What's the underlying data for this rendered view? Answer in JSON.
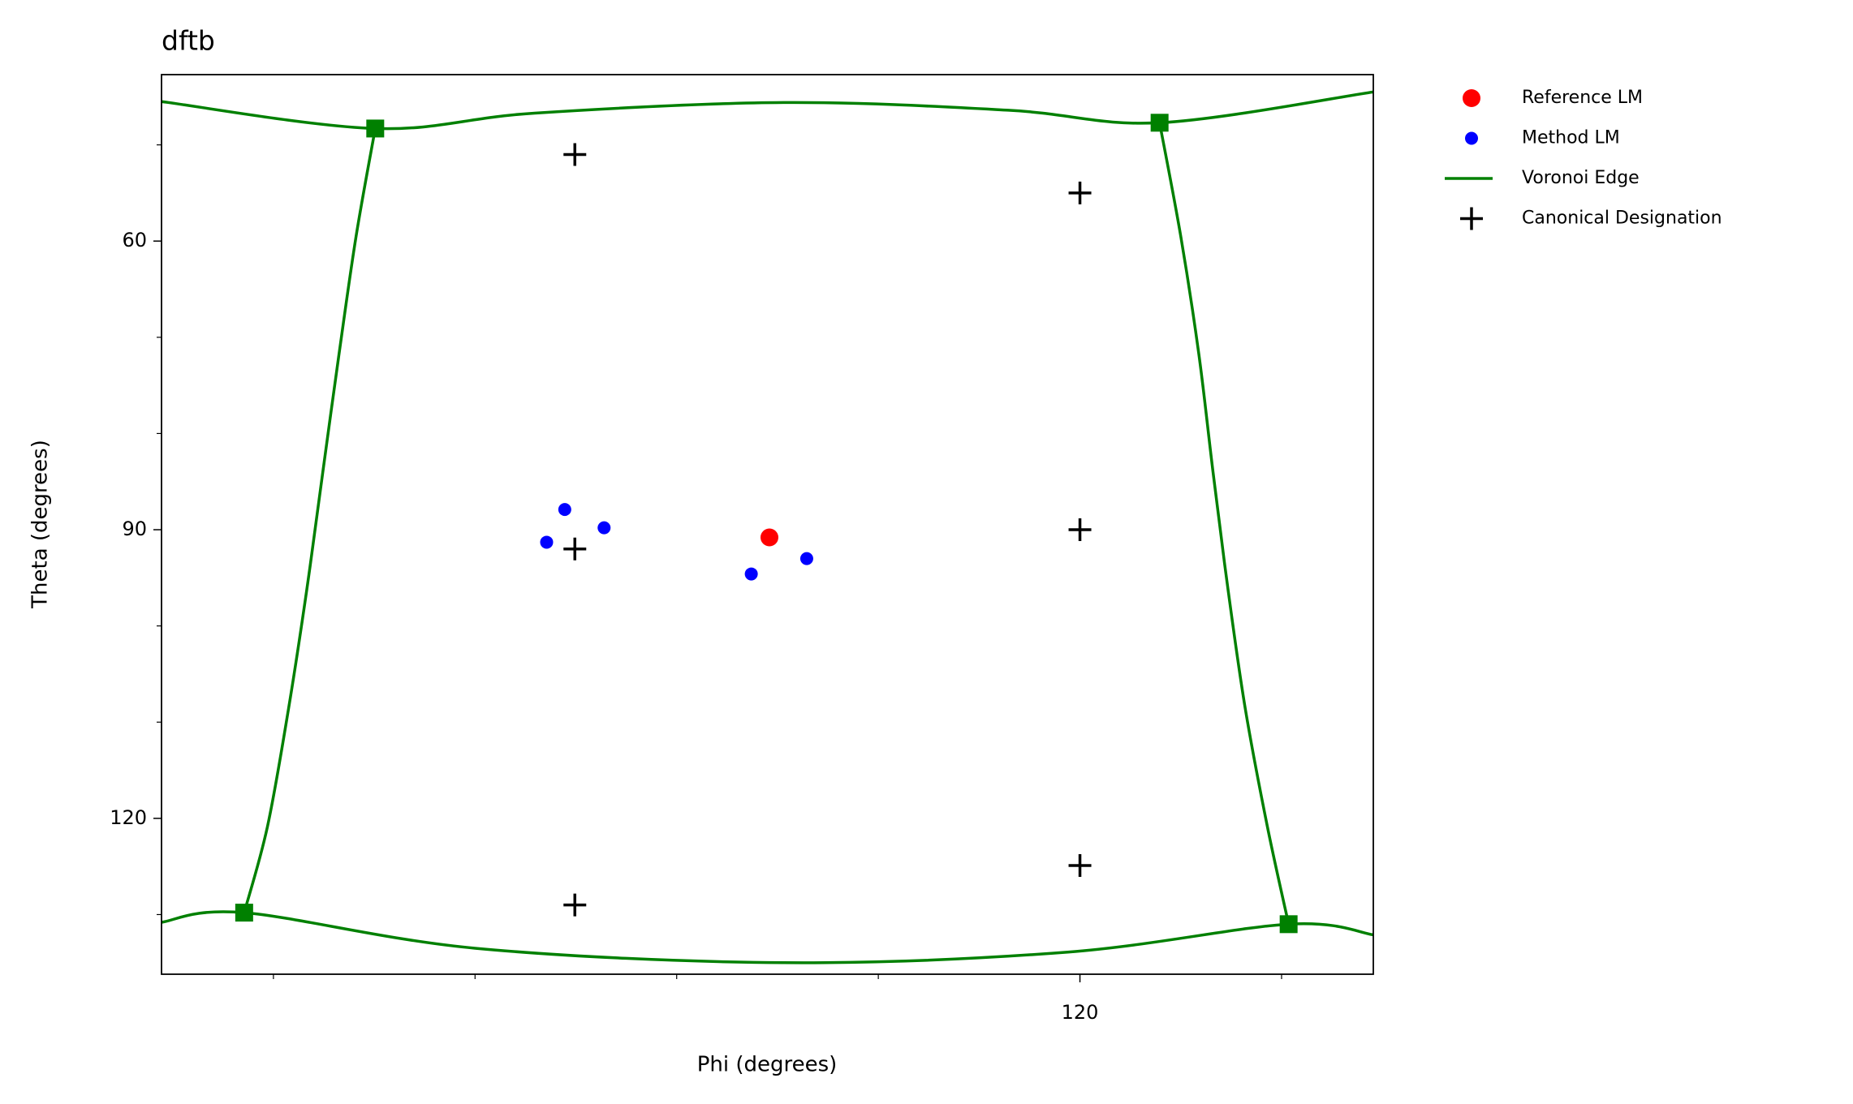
{
  "chart_data": {
    "type": "scatter",
    "title": "dftb",
    "x_label": "Phi (degrees)",
    "y_label": "Theta (degrees)",
    "xlim": [
      28.9,
      149.1
    ],
    "ylim": [
      136.2,
      42.7
    ],
    "y_inverted": true,
    "xticks": [
      120
    ],
    "xminorticks": [
      40,
      60,
      80,
      100,
      140
    ],
    "yticks": [
      60,
      90,
      120
    ],
    "yminorticks": [
      50,
      70,
      80,
      100,
      110,
      130
    ],
    "legend": "outside-upper-right",
    "series": [
      {
        "name": "Reference LM",
        "kind": "point",
        "color": "#ff0000",
        "x": [
          89.2
        ],
        "y": [
          90.8
        ]
      },
      {
        "name": "Method LM",
        "kind": "point-small",
        "color": "#0000ff",
        "x": [
          68.9,
          72.8,
          67.1,
          87.4,
          92.9
        ],
        "y": [
          87.9,
          89.8,
          91.3,
          94.6,
          93.0
        ]
      },
      {
        "name": "Voronoi Edge",
        "kind": "edges",
        "color": "#008000",
        "edges": [
          {
            "x": [
              28.9,
              50.1,
              65.9,
              90.6,
              112.9,
              127.9,
              149.1
            ],
            "y": [
              45.5,
              48.3,
              46.7,
              45.6,
              46.4,
              47.7,
              44.5
            ]
          },
          {
            "x": [
              28.9,
              37.1,
              60.0,
              90.6,
              118.8,
              140.7,
              149.1
            ],
            "y": [
              130.8,
              129.8,
              133.5,
              135.0,
              133.9,
              131.0,
              132.1
            ]
          },
          {
            "x": [
              50.1,
              48.2,
              46.5,
              44.9,
              43.3,
              41.5,
              39.4,
              37.1
            ],
            "y": [
              48.3,
              59.5,
              71.8,
              84.0,
              96.3,
              108.6,
              120.9,
              129.8
            ]
          },
          {
            "x": [
              127.9,
              130.0,
              131.8,
              133.2,
              134.7,
              136.4,
              138.6,
              140.7
            ],
            "y": [
              47.7,
              59.5,
              71.8,
              84.0,
              96.3,
              108.6,
              120.9,
              131.0
            ]
          }
        ],
        "vertices": {
          "x": [
            50.1,
            127.9,
            37.1,
            140.7
          ],
          "y": [
            48.3,
            47.7,
            129.8,
            131.0
          ]
        }
      },
      {
        "name": "Canonical Designation",
        "kind": "plus",
        "color": "#000000",
        "x": [
          69.9,
          120,
          69.9,
          120,
          120,
          69.9
        ],
        "y": [
          51.0,
          55.0,
          92.0,
          90.0,
          124.9,
          129.0
        ]
      }
    ]
  }
}
